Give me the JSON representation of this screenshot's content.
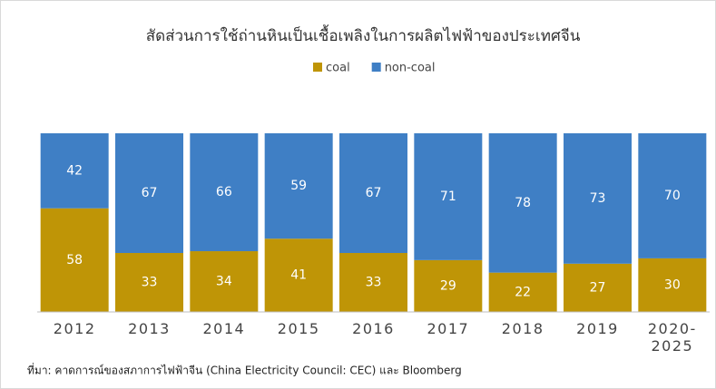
{
  "chart_data": {
    "type": "stacked_bar",
    "title": "สัดส่วนการใช้ถ่านหินเป็นเชื้อเพลิงในการผลิตไฟฟ้าของประเทศจีน",
    "source": "ที่มา: คาดการณ์ของสภาการไฟฟ้าจีน (China Electricity Council: CEC) และ Bloomberg",
    "categories": [
      "2012",
      "2013",
      "2014",
      "2015",
      "2016",
      "2017",
      "2018",
      "2019",
      "2020-2025"
    ],
    "series": [
      {
        "name": "coal",
        "color": "#bf9506",
        "values": [
          58,
          33,
          34,
          41,
          33,
          29,
          22,
          27,
          30
        ]
      },
      {
        "name": "non-coal",
        "color": "#3f7fc5",
        "values": [
          42,
          67,
          66,
          59,
          67,
          71,
          78,
          73,
          70
        ]
      }
    ],
    "legend": "top"
  }
}
